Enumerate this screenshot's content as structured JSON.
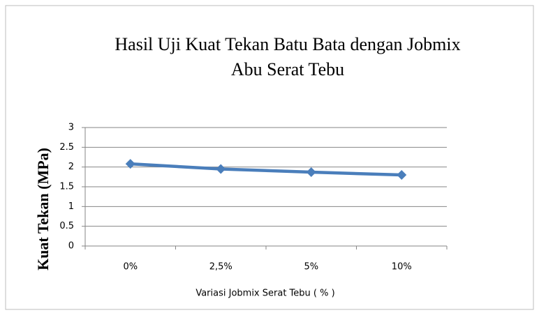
{
  "chart_data": {
    "type": "line",
    "title": [
      "Hasil Uji Kuat  Tekan  Batu Bata dengan  Jobmix",
      "Abu Serat  Tebu"
    ],
    "x_label": "Variasi Jobmix Serat Tebu ( % )",
    "y_label": "Kuat Tekan (MPa)",
    "categories": [
      "0%",
      "2,5%",
      "5%",
      "10%"
    ],
    "series": [
      {
        "name": "Kuat Tekan",
        "color": "#4a7ebb",
        "values": [
          2.08,
          1.95,
          1.87,
          1.8
        ]
      }
    ],
    "ylim": [
      0,
      3
    ],
    "yticks": [
      0,
      0.5,
      1,
      1.5,
      2,
      2.5,
      3
    ],
    "grid": true
  }
}
